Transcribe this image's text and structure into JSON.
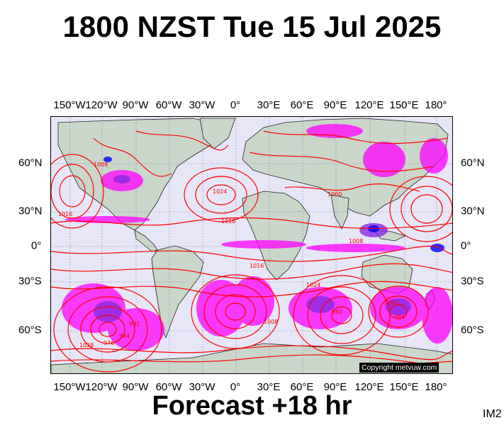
{
  "title": "1800 NZST Tue 15 Jul 2025",
  "footer": {
    "forecast": "Forecast +18 hr",
    "code": "IM2"
  },
  "copyright": "Copyright metvuw.com",
  "longitude_labels": [
    "150°W",
    "120°W",
    "90°W",
    "60°W",
    "30°W",
    "0°",
    "30°E",
    "60°E",
    "90°E",
    "120°E",
    "150°E",
    "180°"
  ],
  "latitude_labels": [
    "60°N",
    "30°N",
    "0°",
    "30°S",
    "60°S"
  ],
  "isobar_labels": [
    "1016",
    "1008",
    "1024",
    "1016",
    "1000",
    "1008",
    "992",
    "984",
    "976",
    "1016",
    "1024",
    "1008",
    "1000",
    "992",
    "984",
    "1028"
  ],
  "colors": {
    "ocean": "#e6e6f7",
    "land": "#c9d6c9",
    "isobar": "#ff0000",
    "rain_light": "#ff00ff",
    "rain_medium": "#8a2be2",
    "rain_heavy": "#0000ff"
  }
}
